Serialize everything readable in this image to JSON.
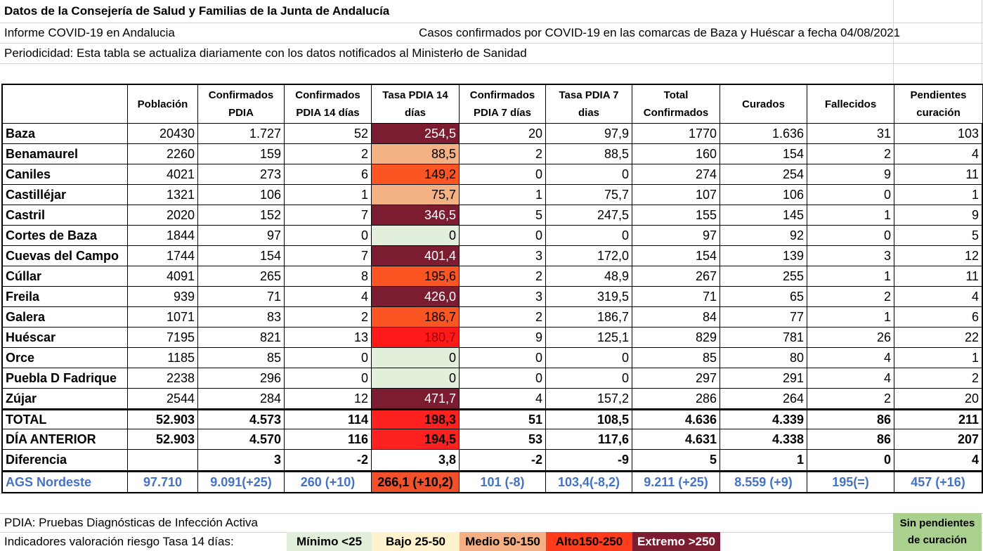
{
  "header": {
    "title": "Datos de la Consejería de Salud y Familias de la Junta de Andalucía",
    "report": "Informe COVID-19 en Andalucia",
    "subtitle": "Casos confirmados por COVID-19 en las comarcas de Baza y Huéscar a fecha 04/08/2021",
    "periodicity": "Periodicidad: Esta tabla se actualiza diariamente con los datos notificados al Ministerło de Sanidad"
  },
  "table": {
    "columns": [
      "Población",
      "Confirmados PDIA",
      "Confirmados PDIA 14 días",
      "Tasa PDIA 14 días",
      "Confirmados PDIA 7 días",
      "Tasa PDIA 7 dias",
      "Total Confirmados",
      "Curados",
      "Fallecidos",
      "Pendientes curación"
    ],
    "rows": [
      {
        "name": "Baza",
        "cells": [
          "20430",
          "1.727",
          "52",
          "254,5",
          "20",
          "97,9",
          "1770",
          "1.636",
          "31",
          "103"
        ],
        "tasa_color": "#7b1c30",
        "tasa_text_color": "#ffffff"
      },
      {
        "name": "Benamaurel",
        "cells": [
          "2260",
          "159",
          "2",
          "88,5",
          "2",
          "88,5",
          "160",
          "154",
          "2",
          "4"
        ],
        "tasa_color": "#f4b183",
        "tasa_text_color": "#000000"
      },
      {
        "name": "Caniles",
        "cells": [
          "4021",
          "273",
          "6",
          "149,2",
          "0",
          "0",
          "274",
          "254",
          "9",
          "11"
        ],
        "tasa_color": "#fa5523",
        "tasa_text_color": "#000000"
      },
      {
        "name": "Castilléjar",
        "cells": [
          "1321",
          "106",
          "1",
          "75,7",
          "1",
          "75,7",
          "107",
          "106",
          "0",
          "1"
        ],
        "tasa_color": "#f4b183",
        "tasa_text_color": "#000000"
      },
      {
        "name": "Castril",
        "cells": [
          "2020",
          "152",
          "7",
          "346,5",
          "5",
          "247,5",
          "155",
          "145",
          "1",
          "9"
        ],
        "tasa_color": "#7b1c30",
        "tasa_text_color": "#ffffff"
      },
      {
        "name": "Cortes de Baza",
        "cells": [
          "1844",
          "97",
          "0",
          "0",
          "0",
          "0",
          "97",
          "92",
          "0",
          "5"
        ],
        "tasa_color": "#e2efda",
        "tasa_text_color": "#000000"
      },
      {
        "name": "Cuevas del Campo",
        "cells": [
          "1744",
          "154",
          "7",
          "401,4",
          "3",
          "172,0",
          "154",
          "139",
          "3",
          "12"
        ],
        "tasa_color": "#7b1c30",
        "tasa_text_color": "#ffffff"
      },
      {
        "name": "Cúllar",
        "cells": [
          "4091",
          "265",
          "8",
          "195,6",
          "2",
          "48,9",
          "267",
          "255",
          "1",
          "11"
        ],
        "tasa_color": "#fa5523",
        "tasa_text_color": "#000000"
      },
      {
        "name": "Freila",
        "cells": [
          "939",
          "71",
          "4",
          "426,0",
          "3",
          "319,5",
          "71",
          "65",
          "2",
          "4"
        ],
        "tasa_color": "#7b1c30",
        "tasa_text_color": "#ffffff"
      },
      {
        "name": "Galera",
        "cells": [
          "1071",
          "83",
          "2",
          "186,7",
          "2",
          "186,7",
          "84",
          "77",
          "1",
          "6"
        ],
        "tasa_color": "#fa5523",
        "tasa_text_color": "#000000"
      },
      {
        "name": "Huéscar",
        "cells": [
          "7195",
          "821",
          "13",
          "180,7",
          "9",
          "125,1",
          "829",
          "781",
          "26",
          "22"
        ],
        "tasa_color": "#ff1a1a",
        "tasa_text_color": "#9c0006"
      },
      {
        "name": "Orce",
        "cells": [
          "1185",
          "85",
          "0",
          "0",
          "0",
          "0",
          "85",
          "80",
          "4",
          "1"
        ],
        "tasa_color": "#e2efda",
        "tasa_text_color": "#000000"
      },
      {
        "name": "Puebla D Fadrique",
        "cells": [
          "2238",
          "296",
          "0",
          "0",
          "0",
          "0",
          "297",
          "291",
          "4",
          "2"
        ],
        "tasa_color": "#e2efda",
        "tasa_text_color": "#000000"
      },
      {
        "name": "Zújar",
        "cells": [
          "2544",
          "284",
          "12",
          "471,7",
          "4",
          "157,2",
          "286",
          "264",
          "2",
          "20"
        ],
        "tasa_color": "#7b1c30",
        "tasa_text_color": "#ffffff"
      },
      {
        "name": "TOTAL",
        "cells": [
          "52.903",
          "4.573",
          "114",
          "198,3",
          "51",
          "108,5",
          "4.636",
          "4.339",
          "86",
          "211"
        ],
        "tasa_color": "#ff2020",
        "tasa_text_color": "#000000"
      },
      {
        "name": "DÍA ANTERIOR",
        "cells": [
          "52.903",
          "4.570",
          "116",
          "194,5",
          "53",
          "117,6",
          "4.631",
          "4.338",
          "86",
          "207"
        ],
        "tasa_color": "#ff2020",
        "tasa_text_color": "#000000"
      },
      {
        "name": "Diferencia",
        "cells": [
          null,
          "3",
          "-2",
          "3,8",
          "-2",
          "-9",
          "5",
          "1",
          "0",
          "4"
        ],
        "tasa_color": "#ffffff",
        "tasa_text_color": "#000000"
      },
      {
        "name": "AGS Nordeste",
        "cells": [
          "97.710",
          "9.091(+25)",
          "260 (+10)",
          "266,1 (+10,2)",
          "101 (-8)",
          "103,4(-8,2)",
          "9.211 (+25)",
          "8.559 (+9)",
          "195(=)",
          "457 (+16)"
        ],
        "tasa_color": "#f0502a",
        "tasa_text_color": "#000000"
      }
    ]
  },
  "footer": {
    "pdia_note": "PDIA: Pruebas Diagnósticas de Infección Activa",
    "indicators": "Indicadores valoración riesgo Tasa 14 días:",
    "legend": [
      {
        "label": "Mínimo <25",
        "color": "#e2efda"
      },
      {
        "label": "Bajo 25-50",
        "color": "#fff2cc"
      },
      {
        "label": "Medio 50-150",
        "color": "#f4b084"
      },
      {
        "label": "Alto150-250",
        "color": "#ff3c1c"
      },
      {
        "label": "Extremo >250",
        "color": "#7b1c30"
      }
    ],
    "no_pending": "Sin pendientes de curación",
    "no_pending_color": "#a9d08e"
  }
}
